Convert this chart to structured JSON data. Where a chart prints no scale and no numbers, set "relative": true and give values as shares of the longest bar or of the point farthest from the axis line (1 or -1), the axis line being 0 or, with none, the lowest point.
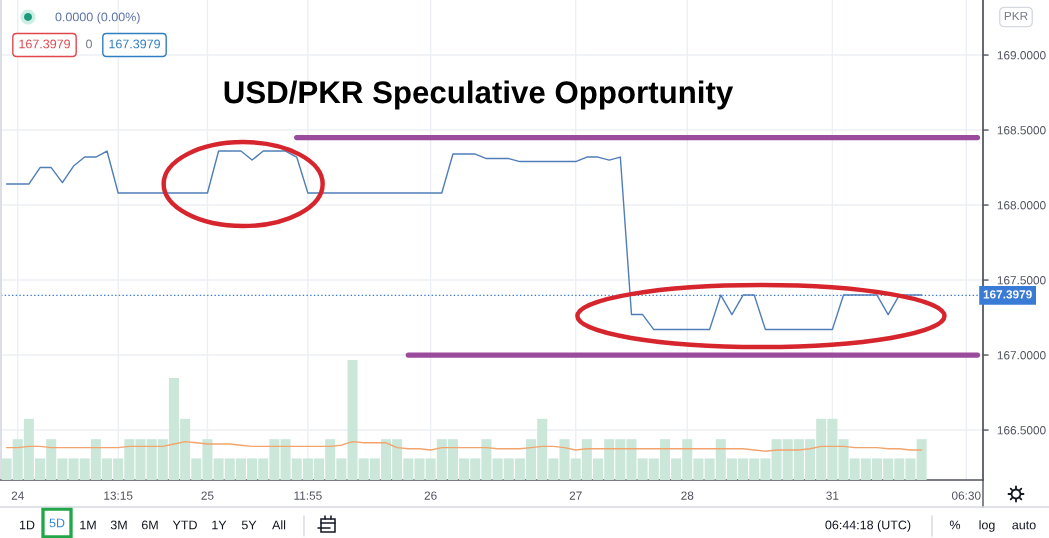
{
  "chart_data": [
    {
      "type": "line",
      "title": "USD/PKR Speculative Opportunity",
      "ylabel": "PKR",
      "categories": [
        null,
        "24",
        null,
        null,
        null,
        null,
        null,
        null,
        null,
        null,
        "13:15",
        null,
        null,
        null,
        null,
        null,
        null,
        null,
        "25",
        null,
        null,
        null,
        null,
        null,
        null,
        null,
        null,
        "11:55",
        null,
        null,
        null,
        null,
        null,
        null,
        null,
        null,
        null,
        null,
        "26",
        null,
        null,
        null,
        null,
        null,
        null,
        null,
        null,
        null,
        null,
        null,
        null,
        "27",
        null,
        null,
        null,
        null,
        null,
        null,
        null,
        null,
        null,
        "28",
        null,
        null,
        null,
        null,
        null,
        null,
        null,
        null,
        null,
        null,
        null,
        null,
        "31",
        null,
        null,
        null,
        null,
        null,
        null,
        null,
        null,
        null,
        null,
        null,
        "06:30",
        null
      ],
      "series": [
        {
          "color": "#4f7db8",
          "values": [
            168.14,
            168.14,
            168.14,
            168.25,
            168.25,
            168.15,
            168.26,
            168.32,
            168.32,
            168.36,
            168.08,
            168.08,
            168.08,
            168.08,
            168.08,
            168.08,
            168.08,
            168.08,
            168.08,
            168.36,
            168.36,
            168.36,
            168.3,
            168.36,
            168.36,
            168.36,
            168.32,
            168.08,
            168.08,
            168.08,
            168.08,
            168.08,
            168.08,
            168.08,
            168.08,
            168.08,
            168.08,
            168.08,
            168.08,
            168.08,
            168.34,
            168.34,
            168.34,
            168.31,
            168.31,
            168.31,
            168.29,
            168.29,
            168.29,
            168.29,
            168.29,
            168.29,
            168.32,
            168.32,
            168.3,
            168.32,
            167.27,
            167.27,
            167.17,
            167.17,
            167.17,
            167.17,
            167.17,
            167.17,
            167.4,
            167.27,
            167.4,
            167.4,
            167.17,
            167.17,
            167.17,
            167.17,
            167.17,
            167.17,
            167.17,
            167.4,
            167.4,
            167.4,
            167.4,
            167.27,
            167.4,
            167.4,
            167.4,
            null,
            null,
            null,
            null,
            null
          ]
        },
        {
          "type": "line",
          "color": "#9a4b9c",
          "values": [
            null,
            null,
            null,
            null,
            null,
            null,
            null,
            null,
            null,
            null,
            null,
            null,
            null,
            null,
            null,
            null,
            null,
            null,
            null,
            null,
            null,
            null,
            null,
            null,
            null,
            null,
            168.45,
            168.45,
            168.45,
            168.45,
            168.45,
            168.45,
            168.45,
            168.45,
            168.45,
            168.45,
            168.45,
            168.45,
            168.45,
            168.45,
            168.45,
            168.45,
            168.45,
            168.45,
            168.45,
            168.45,
            168.45,
            168.45,
            168.45,
            168.45,
            168.45,
            168.45,
            168.45,
            168.45,
            168.45,
            168.45,
            168.45,
            168.45,
            168.45,
            168.45,
            168.45,
            168.45,
            168.45,
            168.45,
            168.45,
            168.45,
            168.45,
            168.45,
            168.45,
            168.45,
            168.45,
            168.45,
            168.45,
            168.45,
            168.45,
            168.45,
            168.45,
            168.45,
            168.45,
            168.45,
            168.45,
            168.45,
            168.45,
            168.45,
            168.45,
            168.45,
            168.45,
            168.45
          ]
        },
        {
          "type": "line",
          "color": "#9a4b9c",
          "values": [
            null,
            null,
            null,
            null,
            null,
            null,
            null,
            null,
            null,
            null,
            null,
            null,
            null,
            null,
            null,
            null,
            null,
            null,
            null,
            null,
            null,
            null,
            null,
            null,
            null,
            null,
            null,
            null,
            null,
            null,
            null,
            null,
            null,
            null,
            null,
            null,
            167.0,
            167.0,
            167.0,
            167.0,
            167.0,
            167.0,
            167.0,
            167.0,
            167.0,
            167.0,
            167.0,
            167.0,
            167.0,
            167.0,
            167.0,
            167.0,
            167.0,
            167.0,
            167.0,
            167.0,
            167.0,
            167.0,
            167.0,
            167.0,
            167.0,
            167.0,
            167.0,
            167.0,
            167.0,
            167.0,
            167.0,
            167.0,
            167.0,
            167.0,
            167.0,
            167.0,
            167.0,
            167.0,
            167.0,
            167.0,
            167.0,
            167.0,
            167.0,
            167.0,
            167.0,
            167.0,
            167.0,
            167.0,
            167.0,
            167.0,
            167.0,
            167.0
          ]
        }
      ],
      "ylim": [
        166.167,
        169.367
      ],
      "yticks": [
        {
          "value": 166.5,
          "label": "166.5000"
        },
        {
          "value": 167,
          "label": "167.0000"
        },
        {
          "value": 167.5,
          "label": "167.5000"
        },
        {
          "value": 168,
          "label": "168.0000"
        },
        {
          "value": 168.5,
          "label": "168.5000"
        },
        {
          "value": 169,
          "label": "169.0000"
        }
      ],
      "ref_lines": [
        {
          "axis": "y",
          "value": 167.3979,
          "label": "167.3979",
          "color": "#3a7bd5",
          "line_style": "dotted"
        }
      ],
      "grid": true,
      "annotations": [
        "0.0000 (0.00%)",
        "167.3979",
        "0",
        "167.3979",
        "1D",
        "5D",
        "1M",
        "3M",
        "6M",
        "YTD",
        "1Y",
        "5Y",
        "All",
        "06:44:18 (UTC)",
        "%",
        "log",
        "auto"
      ]
    },
    {
      "type": "bar",
      "relative": true,
      "categories": [
        null,
        null,
        null,
        null,
        null,
        null,
        null,
        null,
        null,
        null,
        null,
        null,
        null,
        null,
        null,
        null,
        null,
        null,
        null,
        null,
        null,
        null,
        null,
        null,
        null,
        null,
        null,
        null,
        null,
        null,
        null,
        null,
        null,
        null,
        null,
        null,
        null,
        null,
        null,
        null,
        null,
        null,
        null,
        null,
        null,
        null,
        null,
        null,
        null,
        null,
        null,
        null,
        null,
        null,
        null,
        null,
        null,
        null,
        null,
        null,
        null,
        null,
        null,
        null,
        null,
        null,
        null,
        null,
        null,
        null,
        null,
        null,
        null,
        null,
        null,
        null,
        null,
        null,
        null,
        null,
        null,
        null,
        null,
        null,
        null,
        null,
        null,
        null
      ],
      "series": [
        {
          "color": "#cbe7da",
          "values": [
            0.18,
            0.34,
            0.51,
            0.18,
            0.34,
            0.18,
            0.18,
            0.18,
            0.34,
            0.18,
            0.18,
            0.34,
            0.34,
            0.34,
            0.34,
            0.85,
            0.51,
            0.18,
            0.34,
            0.18,
            0.18,
            0.18,
            0.18,
            0.18,
            0.34,
            0.34,
            0.18,
            0.18,
            0.18,
            0.34,
            0.18,
            1,
            0.18,
            0.18,
            0.34,
            0.34,
            0.18,
            0.18,
            0.18,
            0.34,
            0.34,
            0.18,
            0.18,
            0.34,
            0.18,
            0.18,
            0.18,
            0.34,
            0.51,
            0.18,
            0.34,
            0.18,
            0.34,
            0.18,
            0.34,
            0.34,
            0.34,
            0.18,
            0.18,
            0.34,
            0.18,
            0.34,
            0.18,
            0.18,
            0.34,
            0.18,
            0.18,
            0.18,
            0.18,
            0.34,
            0.34,
            0.34,
            0.34,
            0.51,
            0.51,
            0.34,
            0.18,
            0.18,
            0.18,
            0.18,
            0.18,
            0.18,
            0.34,
            null,
            null,
            null,
            null,
            null
          ]
        },
        {
          "type": "line",
          "color": "#f2a46c",
          "values": [
            0.27,
            0.27,
            0.28,
            0.28,
            0.27,
            0.27,
            0.27,
            0.27,
            0.27,
            0.27,
            0.27,
            0.28,
            0.28,
            0.28,
            0.28,
            0.3,
            0.32,
            0.31,
            0.3,
            0.3,
            0.3,
            0.29,
            0.28,
            0.28,
            0.28,
            0.28,
            0.28,
            0.28,
            0.28,
            0.28,
            0.29,
            0.32,
            0.31,
            0.31,
            0.31,
            0.27,
            0.26,
            0.26,
            0.25,
            0.27,
            0.27,
            0.27,
            0.27,
            0.27,
            0.26,
            0.26,
            0.26,
            0.27,
            0.28,
            0.28,
            0.27,
            0.25,
            0.26,
            0.26,
            0.26,
            0.26,
            0.26,
            0.26,
            0.26,
            0.26,
            0.26,
            0.26,
            0.26,
            0.26,
            0.26,
            0.26,
            0.26,
            0.25,
            0.24,
            0.25,
            0.25,
            0.25,
            0.26,
            0.28,
            0.28,
            0.28,
            0.27,
            0.27,
            0.27,
            0.26,
            0.26,
            0.25,
            0.25,
            null,
            null,
            null,
            null,
            null
          ]
        }
      ]
    }
  ]
}
